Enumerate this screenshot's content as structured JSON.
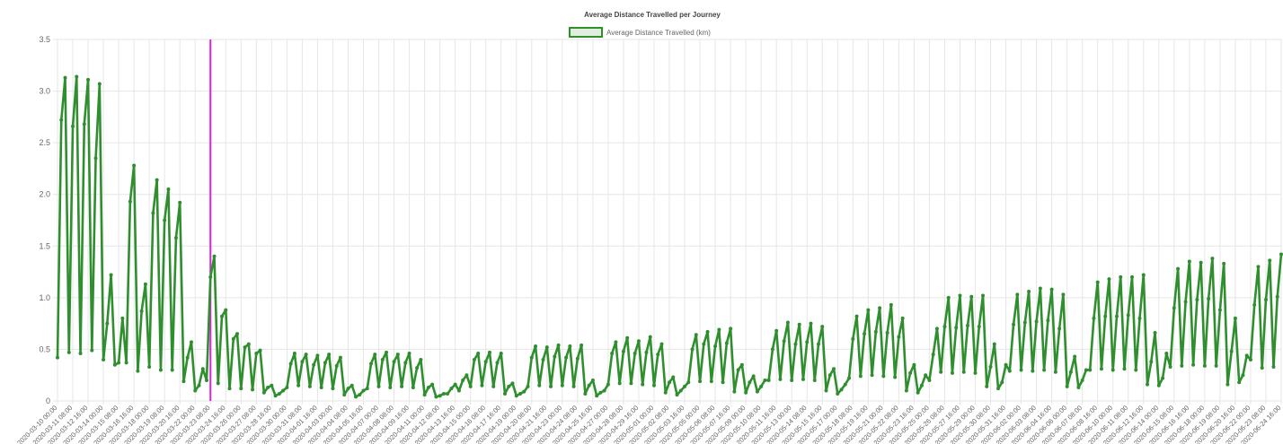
{
  "chart_data": {
    "type": "line",
    "title": "Average Distance Travelled per Journey",
    "categories": [
      "2020-03-10 00:00",
      null,
      null,
      null,
      "2020-03-11 08:00",
      null,
      null,
      null,
      "2020-03-12 16:00",
      null,
      null,
      null,
      "2020-03-14 00:00",
      null,
      null,
      null,
      "2020-03-15 08:00",
      null,
      null,
      null,
      "2020-03-16 16:00",
      null,
      null,
      null,
      "2020-03-18 00:00",
      null,
      null,
      null,
      "2020-03-19 08:00",
      null,
      null,
      null,
      "2020-03-20 16:00",
      null,
      null,
      null,
      "2020-03-22 00:00",
      null,
      null,
      null,
      "2020-03-23 08:00",
      null,
      null,
      null,
      "2020-03-24 16:00",
      null,
      null,
      null,
      "2020-03-26 00:00",
      null,
      null,
      null,
      "2020-03-27 08:00",
      null,
      null,
      null,
      "2020-03-28 16:00",
      null,
      null,
      null,
      "2020-03-30 00:00",
      null,
      null,
      null,
      "2020-03-31 08:00",
      null,
      null,
      null,
      "2020-04-01 16:00",
      null,
      null,
      null,
      "2020-04-03 00:00",
      null,
      null,
      null,
      "2020-04-04 08:00",
      null,
      null,
      null,
      "2020-04-05 16:00",
      null,
      null,
      null,
      "2020-04-07 00:00",
      null,
      null,
      null,
      "2020-04-08 08:00",
      null,
      null,
      null,
      "2020-04-09 16:00",
      null,
      null,
      null,
      "2020-04-11 00:00",
      null,
      null,
      null,
      "2020-04-12 08:00",
      null,
      null,
      null,
      "2020-04-13 16:00",
      null,
      null,
      null,
      "2020-04-15 00:00",
      null,
      null,
      null,
      "2020-04-16 08:00",
      null,
      null,
      null,
      "2020-04-17 16:00",
      null,
      null,
      null,
      "2020-04-19 00:00",
      null,
      null,
      null,
      "2020-04-20 08:00",
      null,
      null,
      null,
      "2020-04-21 16:00",
      null,
      null,
      null,
      "2020-04-23 00:00",
      null,
      null,
      null,
      "2020-04-24 08:00",
      null,
      null,
      null,
      "2020-04-25 16:00",
      null,
      null,
      null,
      "2020-04-27 00:00",
      null,
      null,
      null,
      "2020-04-28 08:00",
      null,
      null,
      null,
      "2020-04-29 16:00",
      null,
      null,
      null,
      "2020-05-01 00:00",
      null,
      null,
      null,
      "2020-05-02 08:00",
      null,
      null,
      null,
      "2020-05-03 16:00",
      null,
      null,
      null,
      "2020-05-05 00:00",
      null,
      null,
      null,
      "2020-05-06 08:00",
      null,
      null,
      null,
      "2020-05-07 16:00",
      null,
      null,
      null,
      "2020-05-09 00:00",
      null,
      null,
      null,
      "2020-05-10 08:00",
      null,
      null,
      null,
      "2020-05-11 16:00",
      null,
      null,
      null,
      "2020-05-13 00:00",
      null,
      null,
      null,
      "2020-05-14 08:00",
      null,
      null,
      null,
      "2020-05-15 16:00",
      null,
      null,
      null,
      "2020-05-17 00:00",
      null,
      null,
      null,
      "2020-05-18 08:00",
      null,
      null,
      null,
      "2020-05-19 16:00",
      null,
      null,
      null,
      "2020-05-21 00:00",
      null,
      null,
      null,
      "2020-05-22 08:00",
      null,
      null,
      null,
      "2020-05-23 16:00",
      null,
      null,
      null,
      "2020-05-25 00:00",
      null,
      null,
      null,
      "2020-05-26 08:00",
      null,
      null,
      null,
      "2020-05-27 16:00",
      null,
      null,
      null,
      "2020-05-29 00:00",
      null,
      null,
      null,
      "2020-05-30 08:00",
      null,
      null,
      null,
      "2020-05-31 16:00",
      null,
      null,
      null,
      "2020-06-02 00:00",
      null,
      null,
      null,
      "2020-06-03 08:00",
      null,
      null,
      null,
      "2020-06-04 16:00",
      null,
      null,
      null,
      "2020-06-06 00:00",
      null,
      null,
      null,
      "2020-06-07 08:00",
      null,
      null,
      null,
      "2020-06-08 16:00",
      null,
      null,
      null,
      "2020-06-10 00:00",
      null,
      null,
      null,
      "2020-06-11 08:00",
      null,
      null,
      null,
      "2020-06-12 16:00",
      null,
      null,
      null,
      "2020-06-14 00:00",
      null,
      null,
      null,
      "2020-06-15 08:00",
      null,
      null,
      null,
      "2020-06-16 16:00",
      null,
      null,
      null,
      "2020-06-18 00:00",
      null,
      null,
      null,
      "2020-06-19 08:00",
      null,
      null,
      null,
      "2020-06-20 16:00",
      null,
      null,
      null,
      "2020-06-22 00:00",
      null,
      null,
      null,
      "2020-06-23 08:00",
      null,
      null,
      null,
      "2020-06-24 16:00"
    ],
    "series": [
      {
        "name": "Average Distance Travelled (km)",
        "color": "#2f8f2f",
        "values": [
          0.42,
          2.72,
          3.13,
          0.47,
          2.66,
          3.14,
          0.46,
          2.68,
          3.11,
          0.49,
          2.35,
          3.07,
          0.4,
          0.75,
          1.22,
          0.35,
          0.37,
          0.8,
          0.37,
          1.93,
          2.28,
          0.29,
          0.87,
          1.13,
          0.33,
          1.82,
          2.14,
          0.3,
          1.75,
          2.05,
          0.3,
          1.58,
          1.92,
          0.19,
          0.42,
          0.57,
          0.1,
          0.15,
          0.31,
          0.2,
          1.2,
          1.4,
          0.17,
          0.82,
          0.88,
          0.12,
          0.6,
          0.65,
          0.12,
          0.52,
          0.55,
          0.11,
          0.46,
          0.49,
          0.08,
          0.13,
          0.15,
          0.05,
          0.07,
          0.1,
          0.13,
          0.36,
          0.46,
          0.15,
          0.38,
          0.45,
          0.14,
          0.35,
          0.44,
          0.13,
          0.37,
          0.45,
          0.12,
          0.34,
          0.42,
          0.06,
          0.12,
          0.15,
          0.04,
          0.06,
          0.1,
          0.12,
          0.36,
          0.45,
          0.14,
          0.4,
          0.47,
          0.13,
          0.38,
          0.45,
          0.14,
          0.37,
          0.46,
          0.13,
          0.32,
          0.4,
          0.06,
          0.13,
          0.16,
          0.04,
          0.05,
          0.07,
          0.07,
          0.12,
          0.16,
          0.1,
          0.2,
          0.25,
          0.14,
          0.4,
          0.46,
          0.15,
          0.38,
          0.47,
          0.14,
          0.37,
          0.46,
          0.07,
          0.14,
          0.17,
          0.05,
          0.07,
          0.09,
          0.14,
          0.42,
          0.53,
          0.15,
          0.4,
          0.52,
          0.14,
          0.43,
          0.54,
          0.15,
          0.42,
          0.53,
          0.14,
          0.41,
          0.54,
          0.07,
          0.15,
          0.2,
          0.05,
          0.08,
          0.1,
          0.16,
          0.46,
          0.57,
          0.17,
          0.48,
          0.61,
          0.17,
          0.46,
          0.58,
          0.16,
          0.47,
          0.62,
          0.15,
          0.45,
          0.55,
          0.08,
          0.18,
          0.23,
          0.06,
          0.1,
          0.14,
          0.18,
          0.5,
          0.64,
          0.19,
          0.55,
          0.67,
          0.19,
          0.53,
          0.69,
          0.18,
          0.56,
          0.7,
          0.09,
          0.3,
          0.35,
          0.08,
          0.18,
          0.24,
          0.09,
          0.14,
          0.2,
          0.2,
          0.5,
          0.68,
          0.21,
          0.58,
          0.76,
          0.2,
          0.55,
          0.74,
          0.21,
          0.57,
          0.75,
          0.2,
          0.55,
          0.72,
          0.1,
          0.25,
          0.31,
          0.07,
          0.11,
          0.16,
          0.22,
          0.6,
          0.82,
          0.24,
          0.65,
          0.88,
          0.25,
          0.67,
          0.9,
          0.24,
          0.66,
          0.93,
          0.23,
          0.62,
          0.8,
          0.1,
          0.27,
          0.35,
          0.08,
          0.15,
          0.25,
          0.2,
          0.45,
          0.7,
          0.28,
          0.72,
          1.0,
          0.27,
          0.71,
          1.02,
          0.28,
          0.73,
          1.01,
          0.27,
          0.72,
          1.02,
          0.14,
          0.33,
          0.55,
          0.12,
          0.18,
          0.35,
          0.29,
          0.74,
          1.03,
          0.3,
          0.76,
          1.06,
          0.29,
          0.77,
          1.09,
          0.3,
          0.78,
          1.08,
          0.28,
          0.7,
          1.03,
          0.14,
          0.28,
          0.43,
          0.13,
          0.2,
          0.3,
          0.3,
          0.8,
          1.15,
          0.31,
          0.82,
          1.18,
          0.3,
          0.82,
          1.2,
          0.31,
          0.83,
          1.2,
          0.3,
          0.8,
          1.22,
          0.16,
          0.38,
          0.66,
          0.15,
          0.22,
          0.46,
          0.33,
          0.9,
          1.28,
          0.34,
          0.96,
          1.35,
          0.35,
          0.98,
          1.34,
          0.34,
          0.99,
          1.38,
          0.34,
          0.88,
          1.33,
          0.16,
          0.48,
          0.8,
          0.18,
          0.25,
          0.44,
          0.4,
          0.93,
          1.3,
          0.32,
          0.98,
          1.36,
          0.33,
          1.01,
          1.42
        ]
      }
    ],
    "ylim": [
      0,
      3.5
    ],
    "yticks": [
      0,
      0.5,
      {
        "value": 1,
        "label": "1.0"
      },
      1.5,
      {
        "value": 2,
        "label": "2.0"
      },
      2.5,
      {
        "value": 3,
        "label": "3.0"
      },
      3.5
    ],
    "grid": true,
    "legend": "top",
    "vertical_line": {
      "x": "2020-03-23 08:00",
      "color": "#dd22dd"
    }
  }
}
